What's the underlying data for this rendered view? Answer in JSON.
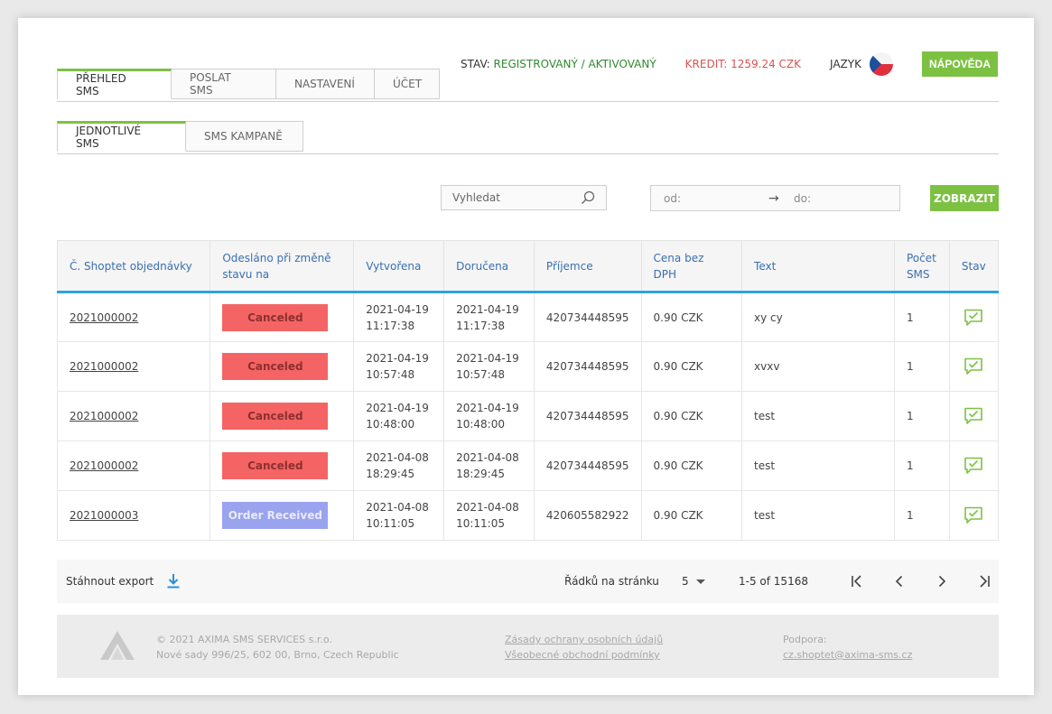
{
  "header": {
    "status_label": "STAV:",
    "status_value": "REGISTROVANÝ / AKTIVOVANÝ",
    "credit": "KREDIT: 1259.24 CZK",
    "language_label": "JAZYK",
    "language_flag": "czech-flag",
    "help_button": "NÁPOVĚDA"
  },
  "colors": {
    "accent_green": "#7dc143",
    "header_blue_rule": "#2aa3e0",
    "canceled_red": "#f46464",
    "received_blue": "#9aa3ee",
    "credit_red": "#d9534f",
    "status_green": "#2e8b2e"
  },
  "main_tabs": [
    {
      "label": "PŘEHLED SMS",
      "active": true
    },
    {
      "label": "POSLAT SMS",
      "active": false
    },
    {
      "label": "NASTAVENÍ",
      "active": false
    },
    {
      "label": "ÚČET",
      "active": false
    }
  ],
  "sub_tabs": [
    {
      "label": "JEDNOTLIVÉ SMS",
      "active": true
    },
    {
      "label": "SMS KAMPANĚ",
      "active": false
    }
  ],
  "filters": {
    "search_placeholder": "Vyhledat",
    "date_from": "od:",
    "date_to": "do:",
    "show_button": "ZOBRAZIT"
  },
  "table": {
    "columns": [
      "Č. Shoptet objednávky",
      "Odesláno při změně stavu na",
      "Vytvořena",
      "Doručena",
      "Příjemce",
      "Cena bez DPH",
      "Text",
      "Počet SMS",
      "Stav"
    ],
    "rows": [
      {
        "order": "2021000002",
        "status": "Canceled",
        "status_kind": "red",
        "created_date": "2021-04-19",
        "created_time": "11:17:38",
        "delivered_date": "2021-04-19",
        "delivered_time": "11:17:38",
        "recipient": "420734448595",
        "price": "0.90 CZK",
        "text": "xy cy",
        "count": "1",
        "state_icon": "message-check-icon"
      },
      {
        "order": "2021000002",
        "status": "Canceled",
        "status_kind": "red",
        "created_date": "2021-04-19",
        "created_time": "10:57:48",
        "delivered_date": "2021-04-19",
        "delivered_time": "10:57:48",
        "recipient": "420734448595",
        "price": "0.90 CZK",
        "text": "xvxv",
        "count": "1",
        "state_icon": "message-check-icon"
      },
      {
        "order": "2021000002",
        "status": "Canceled",
        "status_kind": "red",
        "created_date": "2021-04-19",
        "created_time": "10:48:00",
        "delivered_date": "2021-04-19",
        "delivered_time": "10:48:00",
        "recipient": "420734448595",
        "price": "0.90 CZK",
        "text": "test",
        "count": "1",
        "state_icon": "message-check-icon"
      },
      {
        "order": "2021000002",
        "status": "Canceled",
        "status_kind": "red",
        "created_date": "2021-04-08",
        "created_time": "18:29:45",
        "delivered_date": "2021-04-08",
        "delivered_time": "18:29:45",
        "recipient": "420734448595",
        "price": "0.90 CZK",
        "text": "test",
        "count": "1",
        "state_icon": "message-check-icon"
      },
      {
        "order": "2021000003",
        "status": "Order Received",
        "status_kind": "blue",
        "created_date": "2021-04-08",
        "created_time": "10:11:05",
        "delivered_date": "2021-04-08",
        "delivered_time": "10:11:05",
        "recipient": "420605582922",
        "price": "0.90 CZK",
        "text": "test",
        "count": "1",
        "state_icon": "message-check-icon"
      }
    ]
  },
  "table_footer": {
    "export_label": "Stáhnout export",
    "rows_per_page_label": "Řádků na stránku",
    "rows_per_page_value": "5",
    "range": "1-5 of 15168"
  },
  "footer": {
    "copyright": "© 2021 AXIMA SMS SERVICES s.r.o.",
    "address": "Nové sady 996/25, 602 00, Brno, Czech Republic",
    "privacy_link": "Zásady ochrany osobních údajů",
    "terms_link": "Všeobecné obchodní podmínky",
    "support_label": "Podpora:",
    "support_email": "cz.shoptet@axima-sms.cz"
  }
}
